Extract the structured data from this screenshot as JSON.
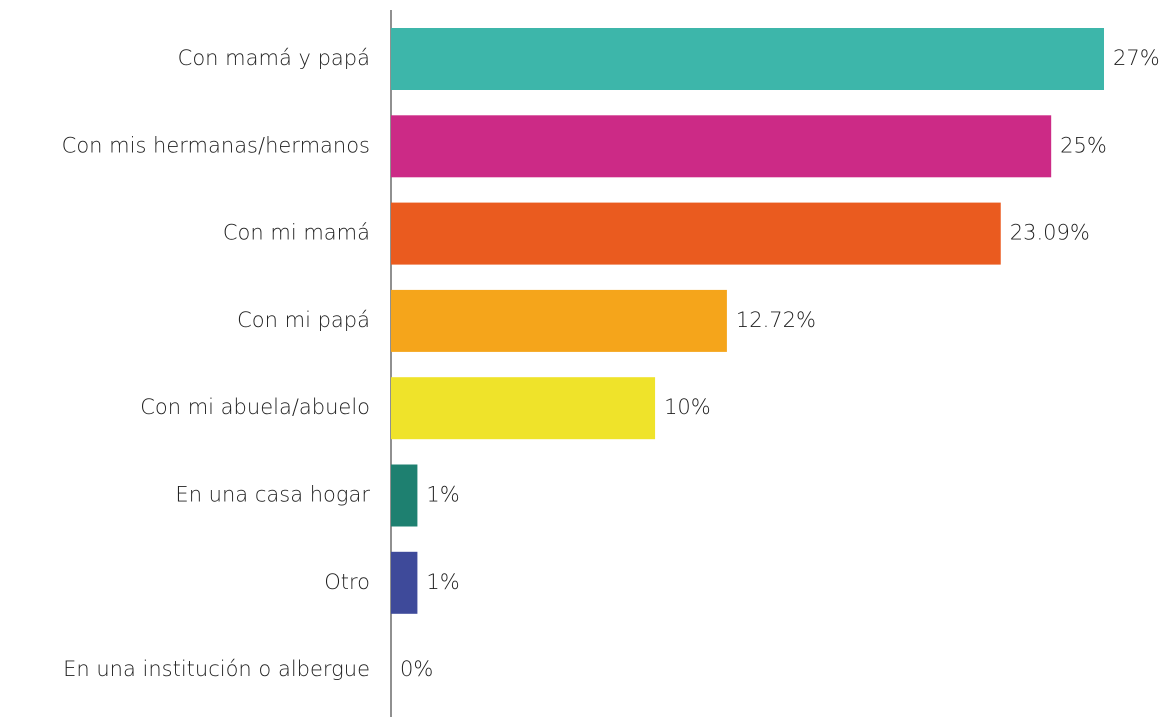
{
  "chart_data": {
    "type": "barh",
    "categories": [
      "Con mamá y papá",
      "Con mis hermanas/hermanos",
      "Con mi mamá",
      "Con mi papá",
      "Con mi abuela/abuelo",
      "En una casa hogar",
      "Otro",
      "En una institución o albergue"
    ],
    "values": [
      27,
      25,
      23.09,
      12.72,
      10,
      1,
      1,
      0
    ],
    "value_labels": [
      "27%",
      "25%",
      "23.09%",
      "12.72%",
      "10%",
      "1%",
      "1%",
      "0%"
    ],
    "colors": [
      "#3db6aa",
      "#cc2a86",
      "#ea5b1f",
      "#f5a51b",
      "#efe32a",
      "#1e8070",
      "#3e4a9a",
      "#2b3a7a"
    ]
  }
}
